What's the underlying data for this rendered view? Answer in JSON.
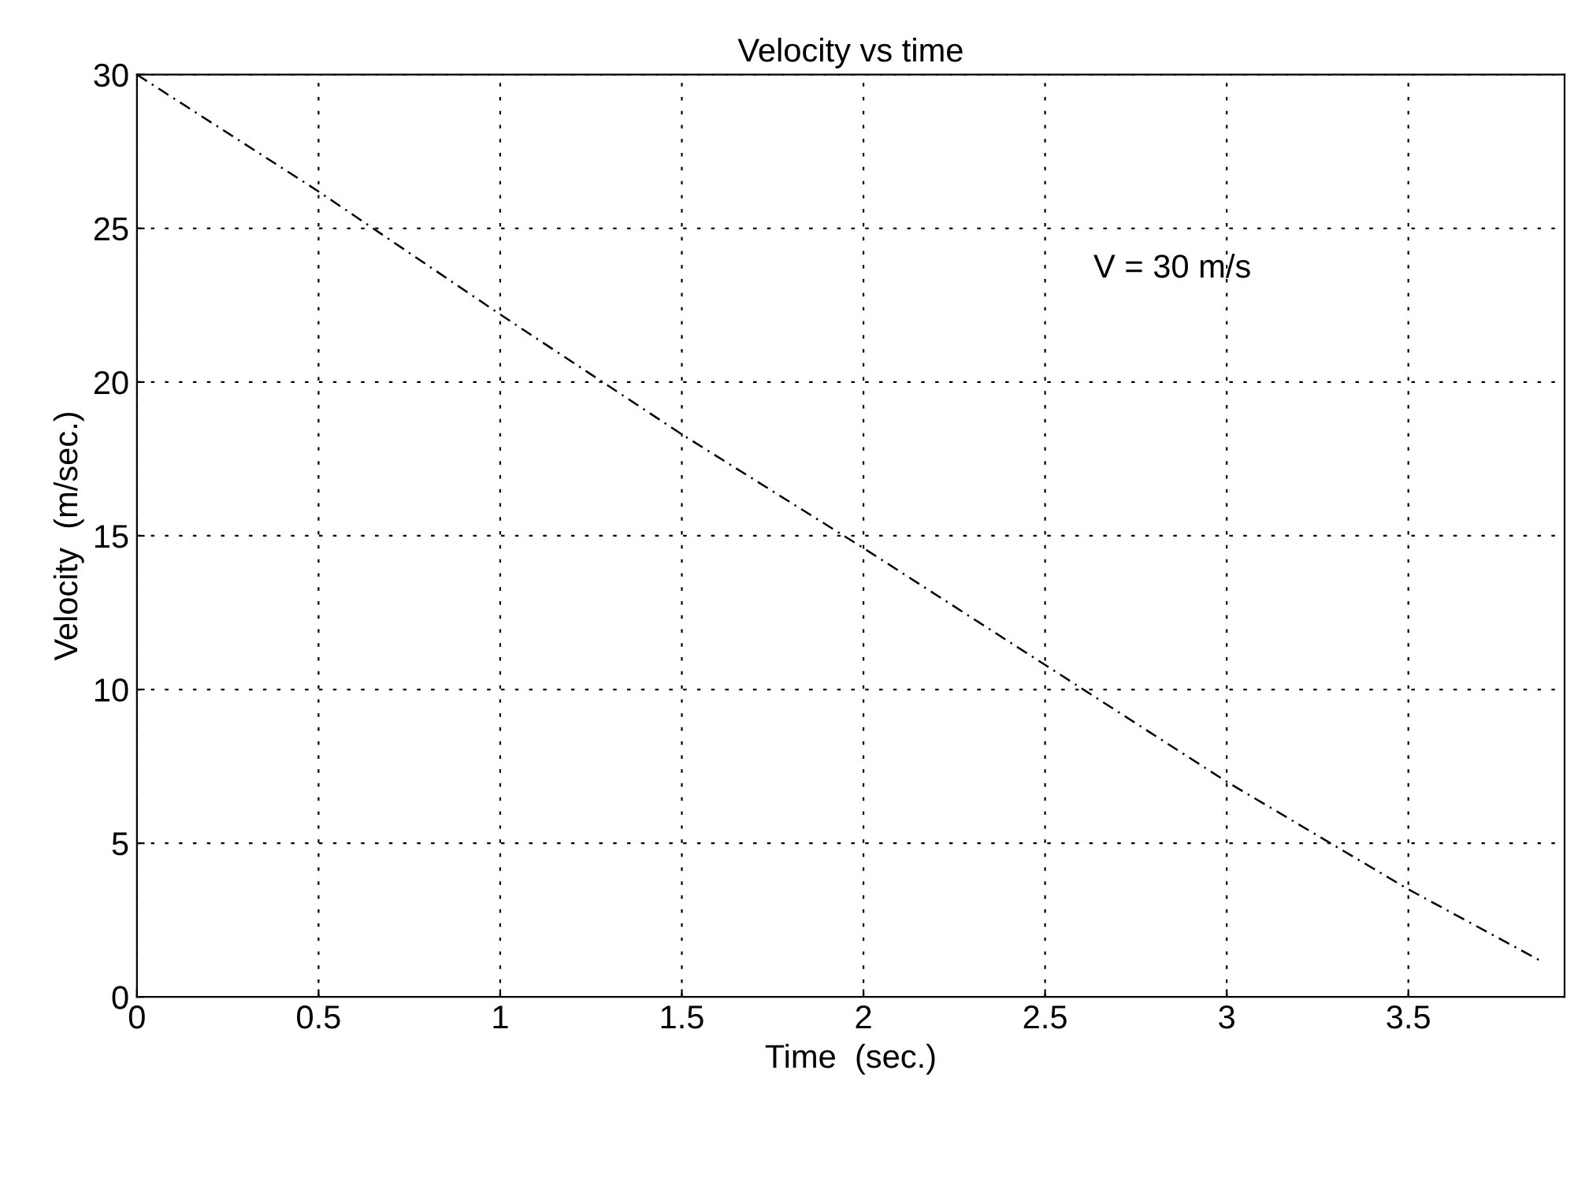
{
  "chart_data": {
    "type": "line",
    "title": "Velocity vs time",
    "xlabel": "Time  (sec.)",
    "ylabel": "Velocity  (m/sec.)",
    "x": [
      0,
      0.5,
      1,
      1.5,
      2,
      2.5,
      3,
      3.5,
      3.86
    ],
    "series": [
      {
        "color": "#000000",
        "values": [
          30,
          26.2,
          22.2,
          18.3,
          14.6,
          10.8,
          7,
          3.5,
          1.2
        ]
      }
    ],
    "xlim": [
      0,
      3.93
    ],
    "ylim": [
      0,
      30
    ],
    "xticks": [
      0,
      0.5,
      1,
      1.5,
      2,
      2.5,
      3,
      3.5
    ],
    "yticks": [
      0,
      5,
      10,
      15,
      20,
      25,
      30
    ],
    "grid": true,
    "line_style": "dashed",
    "annotations": [
      "V = 30 m/s"
    ]
  }
}
